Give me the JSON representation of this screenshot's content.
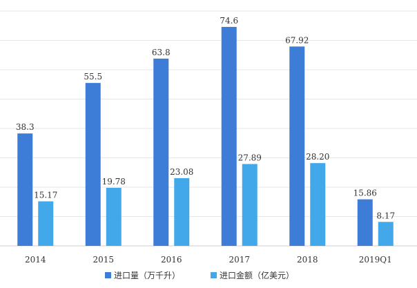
{
  "chart_data": {
    "type": "bar",
    "categories": [
      "2014",
      "2015",
      "2016",
      "2017",
      "2018",
      "2019Q1"
    ],
    "series": [
      {
        "name": "进口量（万千升）",
        "values": [
          38.3,
          55.5,
          63.8,
          74.6,
          67.92,
          15.86
        ],
        "labels": [
          "38.3",
          "55.5",
          "63.8",
          "74.6",
          "67.92",
          "15.86"
        ],
        "color": "#3d7dd8"
      },
      {
        "name": "进口金额（亿美元）",
        "values": [
          15.17,
          19.78,
          23.08,
          27.89,
          28.2,
          8.17
        ],
        "labels": [
          "15.17",
          "19.78",
          "23.08",
          "27.89",
          "28.20",
          "8.17"
        ],
        "color": "#43a8ea"
      }
    ],
    "ylim": [
      0,
      80
    ],
    "grid": true,
    "legend": "bottom"
  }
}
